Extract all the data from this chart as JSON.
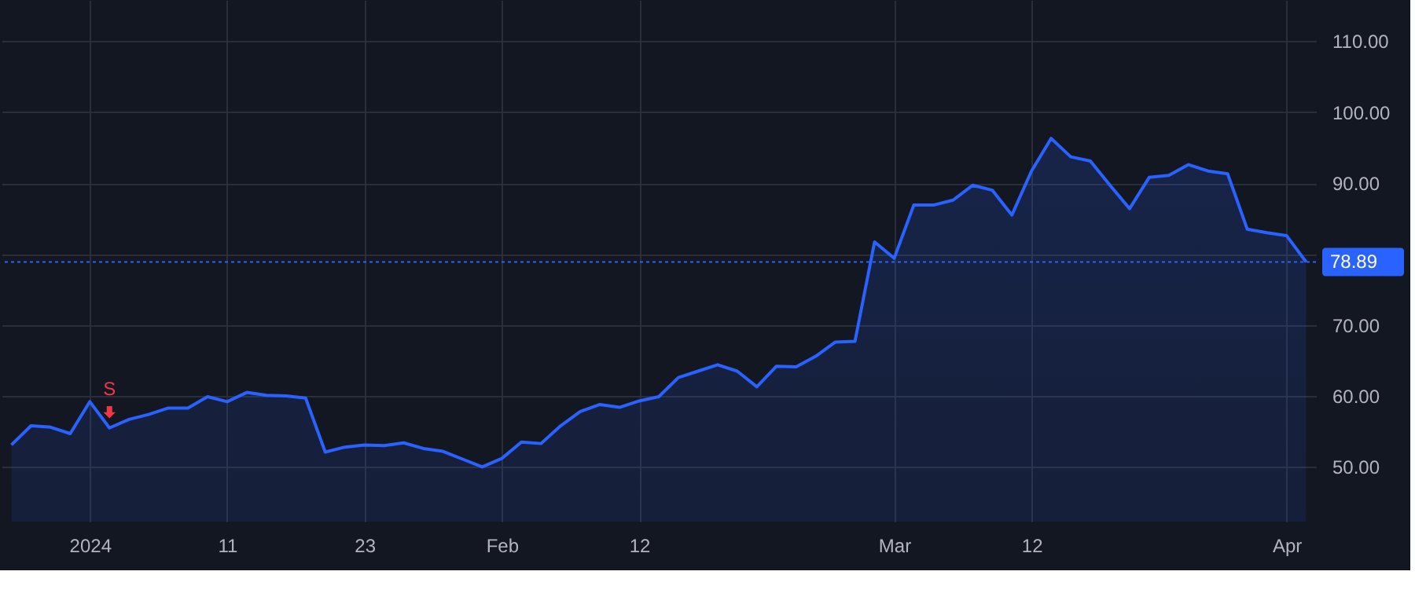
{
  "chart_data": {
    "type": "area",
    "categories": [
      null,
      null,
      null,
      null,
      "2024",
      null,
      null,
      null,
      null,
      null,
      null,
      "11",
      null,
      null,
      null,
      null,
      null,
      null,
      "23",
      null,
      null,
      null,
      null,
      null,
      null,
      "Feb",
      null,
      null,
      null,
      null,
      null,
      null,
      "12",
      null,
      null,
      null,
      null,
      null,
      null,
      null,
      null,
      null,
      null,
      null,
      null,
      "Mar",
      null,
      null,
      null,
      null,
      null,
      null,
      "12",
      null,
      null,
      null,
      null,
      null,
      null,
      null,
      null,
      null,
      null,
      null,
      null,
      "Apr",
      null
    ],
    "series": [
      {
        "color": "#2962ff",
        "values": [
          53.1,
          55.8,
          55.6,
          54.7,
          59.2,
          55.5,
          56.7,
          57.4,
          58.3,
          58.3,
          59.9,
          59.2,
          60.5,
          60.1,
          60.0,
          59.7,
          52.1,
          52.8,
          53.1,
          53.0,
          53.4,
          52.6,
          52.2,
          51.1,
          50.0,
          51.2,
          53.5,
          53.3,
          55.8,
          57.8,
          58.8,
          58.4,
          59.3,
          59.9,
          62.6,
          63.5,
          64.4,
          63.5,
          61.3,
          64.2,
          64.1,
          65.6,
          67.6,
          67.7,
          81.7,
          79.4,
          86.9,
          86.9,
          87.6,
          89.7,
          89.0,
          85.5,
          91.7,
          96.3,
          93.7,
          93.1,
          89.7,
          86.4,
          90.8,
          91.1,
          92.6,
          91.7,
          91.3,
          83.5,
          83.0,
          82.6,
          78.89
        ]
      }
    ],
    "ylim": [
      42.3,
      115.8
    ],
    "yticks": [
      {
        "value": 50,
        "label": "50.00"
      },
      {
        "value": 60,
        "label": "60.00"
      },
      {
        "value": 70,
        "label": "70.00"
      },
      {
        "value": 80,
        "label": null
      },
      {
        "value": 90,
        "label": "90.00"
      },
      {
        "value": 100,
        "label": "100.00"
      },
      {
        "value": 110,
        "label": "110.00"
      }
    ],
    "ref_lines": [
      {
        "axis": "y",
        "value": 78.89,
        "label": "78.89",
        "color": "#2962ff",
        "line_style": "dotted"
      }
    ],
    "annotations": [
      {
        "text": "S",
        "y": 55.5
      }
    ],
    "grid": true
  }
}
